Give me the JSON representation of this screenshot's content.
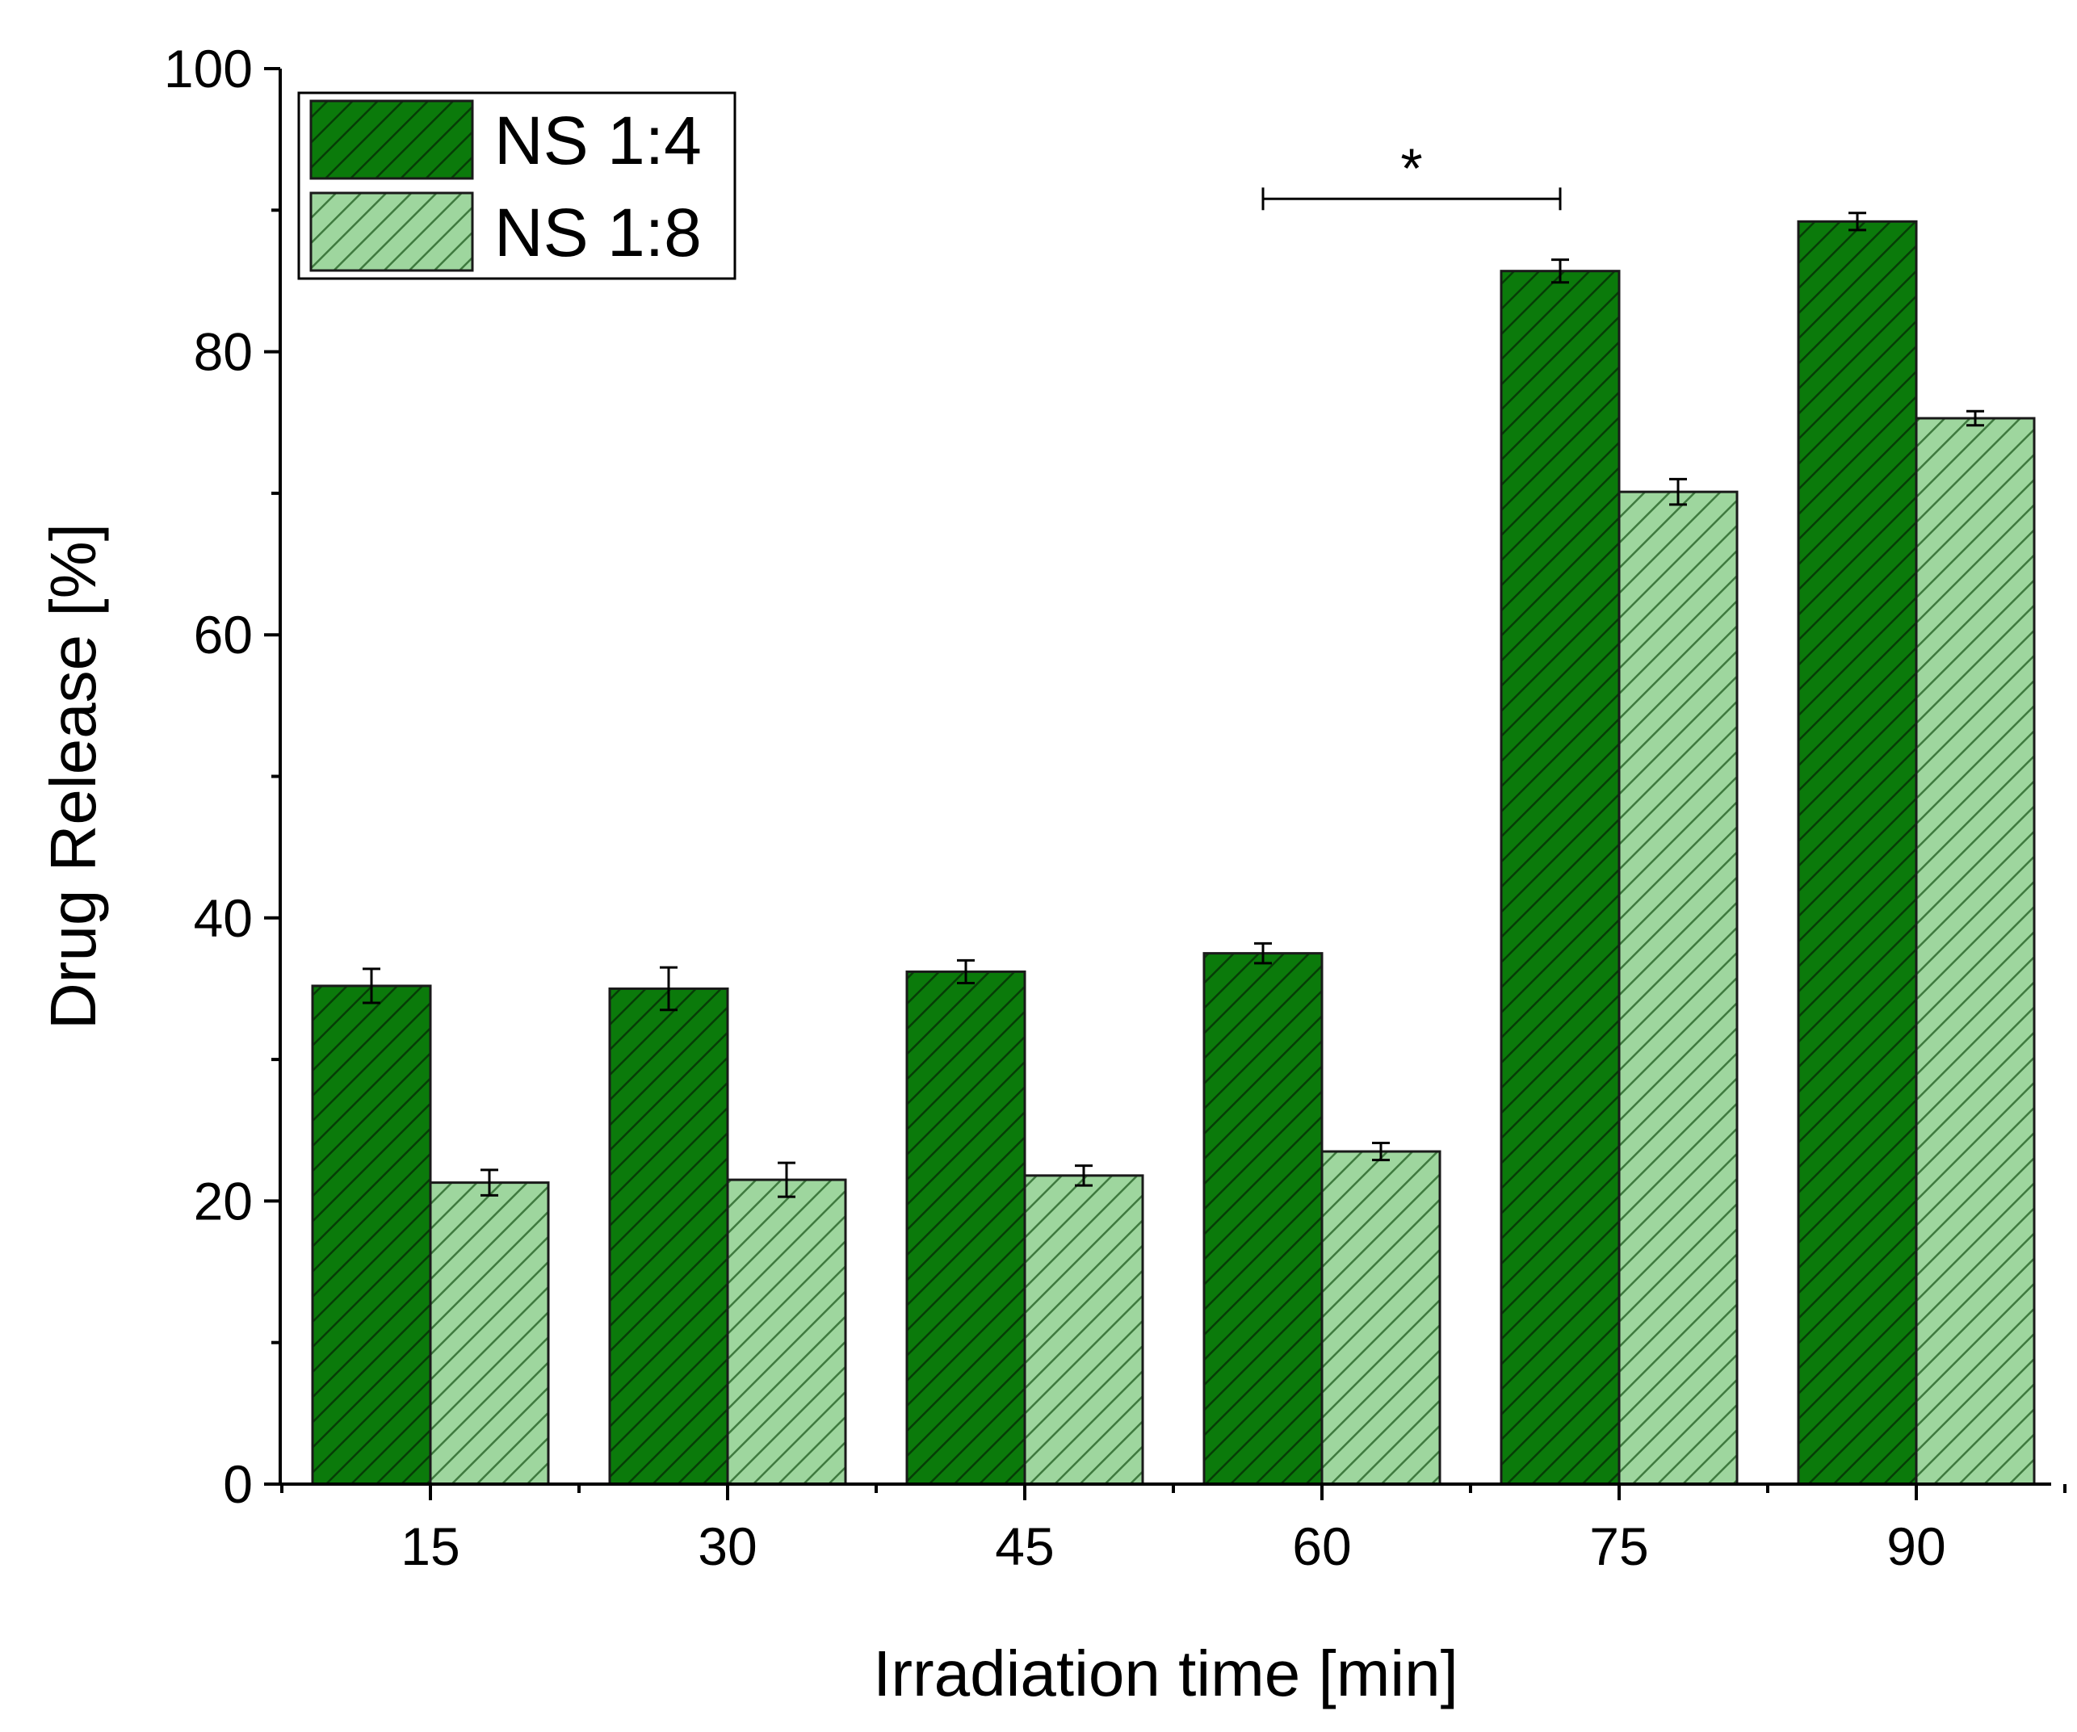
{
  "chart_data": {
    "type": "bar",
    "title": "",
    "xlabel": "Irradiation time [min]",
    "ylabel": "Drug Release [%]",
    "categories": [
      "15",
      "30",
      "45",
      "60",
      "75",
      "90"
    ],
    "ylim": [
      0,
      100
    ],
    "yticks": [
      0,
      20,
      40,
      60,
      80,
      100
    ],
    "y_minor_step": 10,
    "grid": false,
    "legend_position": "top-left",
    "series": [
      {
        "name": "NS 1:4",
        "color": "#0b7a0b",
        "values": [
          35.2,
          35.0,
          36.2,
          37.5,
          85.7,
          89.2
        ],
        "errors": [
          1.2,
          1.5,
          0.8,
          0.7,
          0.8,
          0.6
        ]
      },
      {
        "name": "NS 1:8",
        "color": "#9ed69e",
        "values": [
          21.3,
          21.5,
          21.8,
          23.5,
          70.1,
          75.3
        ],
        "errors": [
          0.9,
          1.2,
          0.7,
          0.6,
          0.9,
          0.5
        ]
      }
    ],
    "annotations": [
      {
        "text": "*",
        "from_category": "60",
        "to_category": "75",
        "y": 90.8
      }
    ]
  }
}
